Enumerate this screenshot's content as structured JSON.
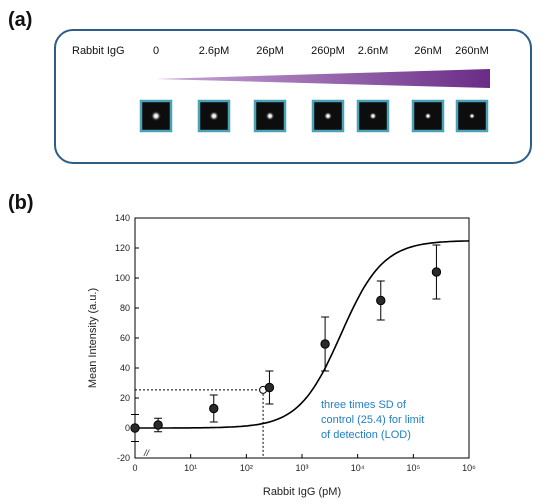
{
  "panel_a": {
    "label": "(a)",
    "row_label": "Rabbit IgG",
    "concentrations": [
      "0",
      "2.6pM",
      "26pM",
      "260pM",
      "2.6nM",
      "26nM",
      "260nM"
    ],
    "gradient_color": "#7b3f93",
    "box_border_color": "#2e5d86",
    "spot_frame_color": "#4aa3b5"
  },
  "panel_b": {
    "label": "(b)",
    "chart_data": {
      "type": "scatter",
      "xscale": "log",
      "x_tick_labels": [
        "0",
        "10¹",
        "10²",
        "10³",
        "10⁴",
        "10⁵",
        "10⁶"
      ],
      "y_tick_labels": [
        "-20",
        "0",
        "20",
        "40",
        "60",
        "80",
        "100",
        "120",
        "140"
      ],
      "xlabel": "Rabbit IgG (pM)",
      "ylabel": "Mean Intensity (a.u.)",
      "ylim": [
        -20,
        140
      ],
      "xlim_log10": [
        0,
        6
      ],
      "axis_break_mark": "//",
      "series": [
        {
          "x": [
            0,
            2.6,
            26,
            260,
            2600,
            26000,
            260000
          ],
          "y": [
            0,
            2,
            13,
            27,
            56,
            85,
            104
          ],
          "error": [
            9,
            4.5,
            9,
            11,
            18,
            13,
            18
          ]
        }
      ],
      "fit_curve": true,
      "lod": {
        "y": 25.4,
        "x": 200,
        "annotation_lines": [
          "three times SD of",
          "control (25.4) for limit",
          "of detection (LOD)"
        ]
      },
      "annotation_color": "#1f7fc6",
      "grid": false
    }
  }
}
